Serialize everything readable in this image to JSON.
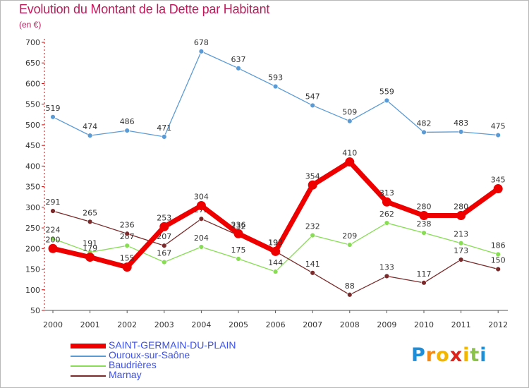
{
  "title": "Evolution du Montant de la Dette par Habitant",
  "subtitle": "(en €)",
  "brand": {
    "logo_text": "Proxiti"
  },
  "chart_data": {
    "type": "line",
    "x": [
      "2000",
      "2001",
      "2002",
      "2003",
      "2004",
      "2005",
      "2006",
      "2007",
      "2008",
      "2009",
      "2010",
      "2011",
      "2012"
    ],
    "ylim": [
      50,
      700
    ],
    "yticks": [
      50,
      100,
      150,
      200,
      250,
      300,
      350,
      400,
      450,
      500,
      550,
      600,
      650,
      700
    ],
    "grid": false,
    "legend_position": "bottom-left",
    "series": [
      {
        "name": "SAINT-GERMAIN-DU-PLAIN",
        "color": "#ee0000",
        "values": [
          200,
          179,
          155,
          253,
          304,
          236,
          193,
          354,
          410,
          313,
          280,
          280,
          345
        ]
      },
      {
        "name": "Ouroux-sur-Saône",
        "color": "#5b9bd5",
        "values": [
          519,
          474,
          486,
          471,
          678,
          637,
          593,
          547,
          509,
          559,
          482,
          483,
          475
        ]
      },
      {
        "name": "Baudrières",
        "color": "#88dd55",
        "values": [
          224,
          191,
          207,
          167,
          204,
          175,
          144,
          232,
          209,
          262,
          238,
          213,
          186
        ]
      },
      {
        "name": "Marnay",
        "color": "#7a2a2a",
        "values": [
          291,
          265,
          236,
          207,
          272,
          232,
          193,
          141,
          88,
          133,
          117,
          173,
          150
        ]
      }
    ]
  }
}
